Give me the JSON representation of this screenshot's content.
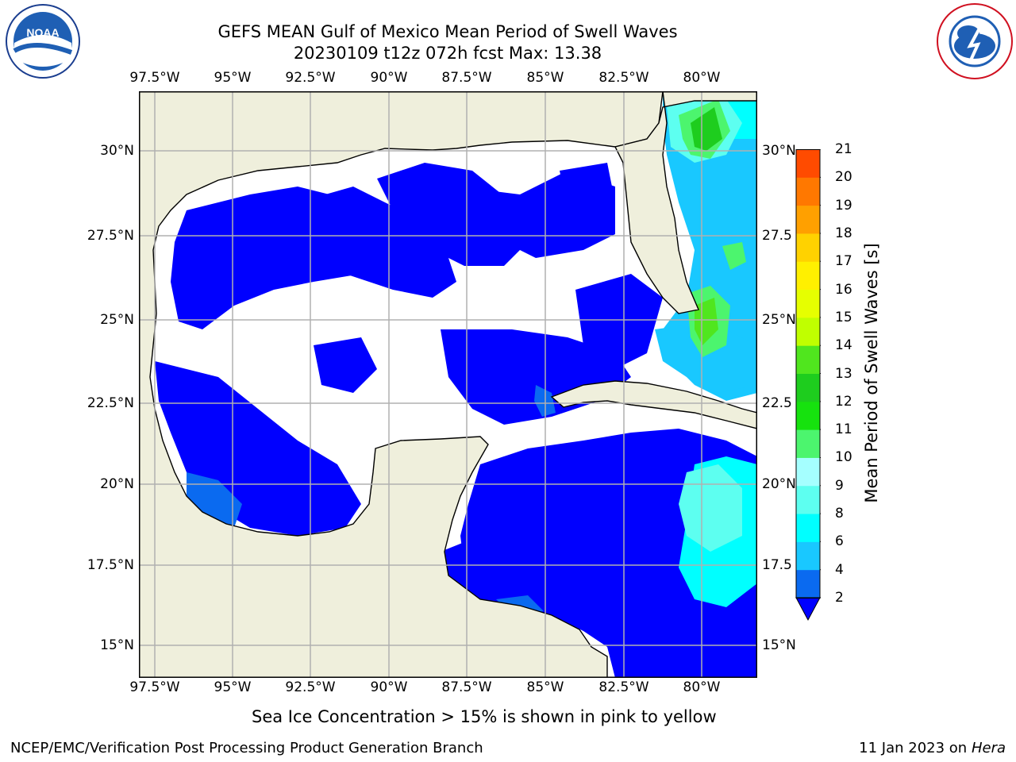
{
  "header": {
    "title_line1": "GEFS MEAN Gulf of Mexico Mean Period of Swell Waves",
    "title_line2": "20230109 t12z 072h fcst   Max: 13.38"
  },
  "map": {
    "lon_ticks": [
      "97.5°W",
      "95°W",
      "92.5°W",
      "90°W",
      "87.5°W",
      "85°W",
      "82.5°W",
      "80°W"
    ],
    "lat_ticks": [
      "30°N",
      "27.5°N",
      "25°N",
      "22.5°N",
      "20°N",
      "17.5°N",
      "15°N"
    ],
    "lat_ticks_right": [
      "30°N",
      "27.5",
      "25°N",
      "22.5",
      "20°N",
      "17.5",
      "15°N"
    ],
    "land_color": "#efefdc",
    "ocean_color": "#ffffff",
    "grid_color": "#b0b0b0"
  },
  "colorbar": {
    "title": "Mean Period of Swell Waves [s]",
    "labels": [
      "2",
      "4",
      "6",
      "8",
      "9",
      "10",
      "11",
      "12",
      "13",
      "14",
      "15",
      "16",
      "17",
      "18",
      "19",
      "20",
      "21"
    ],
    "colors": [
      "#0a6af0",
      "#19c8ff",
      "#00ffff",
      "#5dfff0",
      "#a5ffff",
      "#4cf56e",
      "#16e20e",
      "#1ecd1e",
      "#50e61e",
      "#c0ff00",
      "#e6ff00",
      "#fff000",
      "#ffd200",
      "#ffa000",
      "#ff7800",
      "#ff4b00",
      "#ff1e00",
      "#ff0000"
    ],
    "under_color": "#0000ff"
  },
  "caption": "Sea Ice Concentration > 15% is shown in pink to yellow",
  "footer": {
    "left": "NCEP/EMC/Verification Post Processing Product Generation Branch",
    "right_date": "11 Jan 2023 on ",
    "right_host": "Hera"
  },
  "logos": {
    "noaa": "NOAA",
    "nws": "NATIONAL WEATHER SERVICE"
  }
}
